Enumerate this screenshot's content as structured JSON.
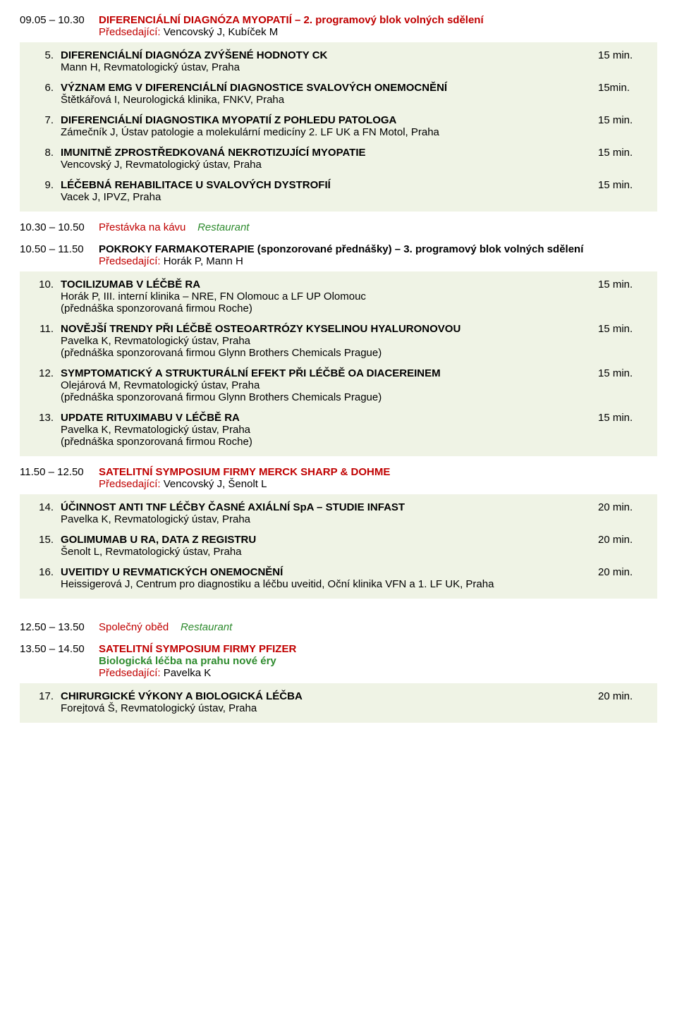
{
  "s1": {
    "time": "09.05 – 10.30",
    "title_red": "DIFERENCIÁLNÍ DIAGNÓZA MYOPATIÍ – 2. programový blok volných sdělení",
    "chair_label": "Předsedající:",
    "chair_names": "  Vencovský J, Kubíček M",
    "items": [
      {
        "n": "5.",
        "title": "DIFERENCIÁLNÍ DIAGNÓZA ZVÝŠENÉ HODNOTY CK",
        "authors": "Mann H, Revmatologický ústav, Praha",
        "dur": "15 min."
      },
      {
        "n": "6.",
        "title": "VÝZNAM EMG V DIFERENCIÁLNÍ DIAGNOSTICE SVALOVÝCH ONEMOCNĚNÍ",
        "authors": "Štětkářová I, Neurologická klinika, FNKV, Praha",
        "dur": "15min."
      },
      {
        "n": "7.",
        "title": "DIFERENCIÁLNÍ DIAGNOSTIKA MYOPATIÍ Z POHLEDU PATOLOGA",
        "authors": "Zámečník J, Ústav patologie a molekulární medicíny 2. LF UK a FN Motol, Praha",
        "dur": "15 min."
      },
      {
        "n": "8.",
        "title": "IMUNITNĚ ZPROSTŘEDKOVANÁ NEKROTIZUJÍCÍ MYOPATIE",
        "authors": "Vencovský J, Revmatologický ústav, Praha",
        "dur": "15 min."
      },
      {
        "n": "9.",
        "title": "LÉČEBNÁ REHABILITACE U SVALOVÝCH DYSTROFIÍ",
        "authors": "Vacek J, IPVZ, Praha",
        "dur": "15 min."
      }
    ]
  },
  "break1": {
    "time": "10.30 – 10.50",
    "text": "Přestávka na kávu",
    "place": "Restaurant"
  },
  "s2": {
    "time": "10.50 – 11.50",
    "title_black": "POKROKY FARMAKOTERAPIE (sponzorované přednášky)  – 3. programový blok volných sdělení",
    "chair_label": "Předsedající:",
    "chair_names": " Horák P, Mann H",
    "items": [
      {
        "n": "10.",
        "title": "TOCILIZUMAB V LÉČBĚ RA",
        "authors": "Horák P, III. interní klinika – NRE, FN Olomouc a LF UP Olomouc\n(přednáška sponzorovaná firmou Roche)",
        "dur": "15 min."
      },
      {
        "n": "11.",
        "title": "NOVĚJŠÍ TRENDY PŘI LÉČBĚ OSTEOARTRÓZY KYSELINOU HYALURONOVOU",
        "authors": "Pavelka K, Revmatologický ústav, Praha\n(přednáška sponzorovaná firmou Glynn Brothers Chemicals Prague)",
        "dur": "15 min."
      },
      {
        "n": "12.",
        "title": "SYMPTOMATICKÝ A STRUKTURÁLNÍ EFEKT PŘI LÉČBĚ OA DIACEREINEM",
        "authors": "Olejárová M, Revmatologický ústav, Praha\n(přednáška sponzorovaná firmou Glynn Brothers Chemicals Prague)",
        "dur": "15 min."
      },
      {
        "n": "13.",
        "title": "UPDATE RITUXIMABU V LÉČBĚ RA",
        "authors": "Pavelka K, Revmatologický ústav, Praha\n(přednáška sponzorovaná firmou Roche)",
        "dur": "15 min."
      }
    ]
  },
  "s3": {
    "time": "11.50 – 12.50",
    "title_red": "SATELITNÍ SYMPOSIUM FIRMY MERCK SHARP & DOHME",
    "chair_label": "Předsedající:",
    "chair_names": "  Vencovský J, Šenolt L",
    "items": [
      {
        "n": "14.",
        "title": "ÚČINNOST ANTI TNF LÉČBY ČASNÉ AXIÁLNÍ SpA – STUDIE INFAST",
        "authors": "Pavelka K, Revmatologický ústav, Praha",
        "dur": "20 min."
      },
      {
        "n": "15.",
        "title": "GOLIMUMAB U RA, DATA Z REGISTRU",
        "authors": "Šenolt L, Revmatologický ústav, Praha",
        "dur": "20 min."
      },
      {
        "n": "16.",
        "title": "UVEITIDY U REVMATICKÝCH ONEMOCNĚNÍ",
        "authors": "Heissigerová J, Centrum pro diagnostiku a léčbu uveitid, Oční klinika VFN a 1. LF UK, Praha",
        "dur": "20 min."
      }
    ]
  },
  "break2": {
    "time": "12.50 – 13.50",
    "text": "Společný oběd",
    "place": "Restaurant"
  },
  "s4": {
    "time": "13.50 – 14.50",
    "title_red": "SATELITNÍ SYMPOSIUM FIRMY PFIZER",
    "title_green": "Biologická léčba na prahu nové éry",
    "chair_label": "Předsedající:",
    "chair_names": " Pavelka K",
    "items": [
      {
        "n": "17.",
        "title": "CHIRURGICKÉ VÝKONY  A BIOLOGICKÁ LÉČBA",
        "authors": "Forejtová Š, Revmatologický ústav, Praha",
        "dur": "20 min."
      }
    ]
  },
  "colors": {
    "red": "#c00000",
    "green": "#2e8b2e",
    "block_bg": "#eff3e5"
  }
}
